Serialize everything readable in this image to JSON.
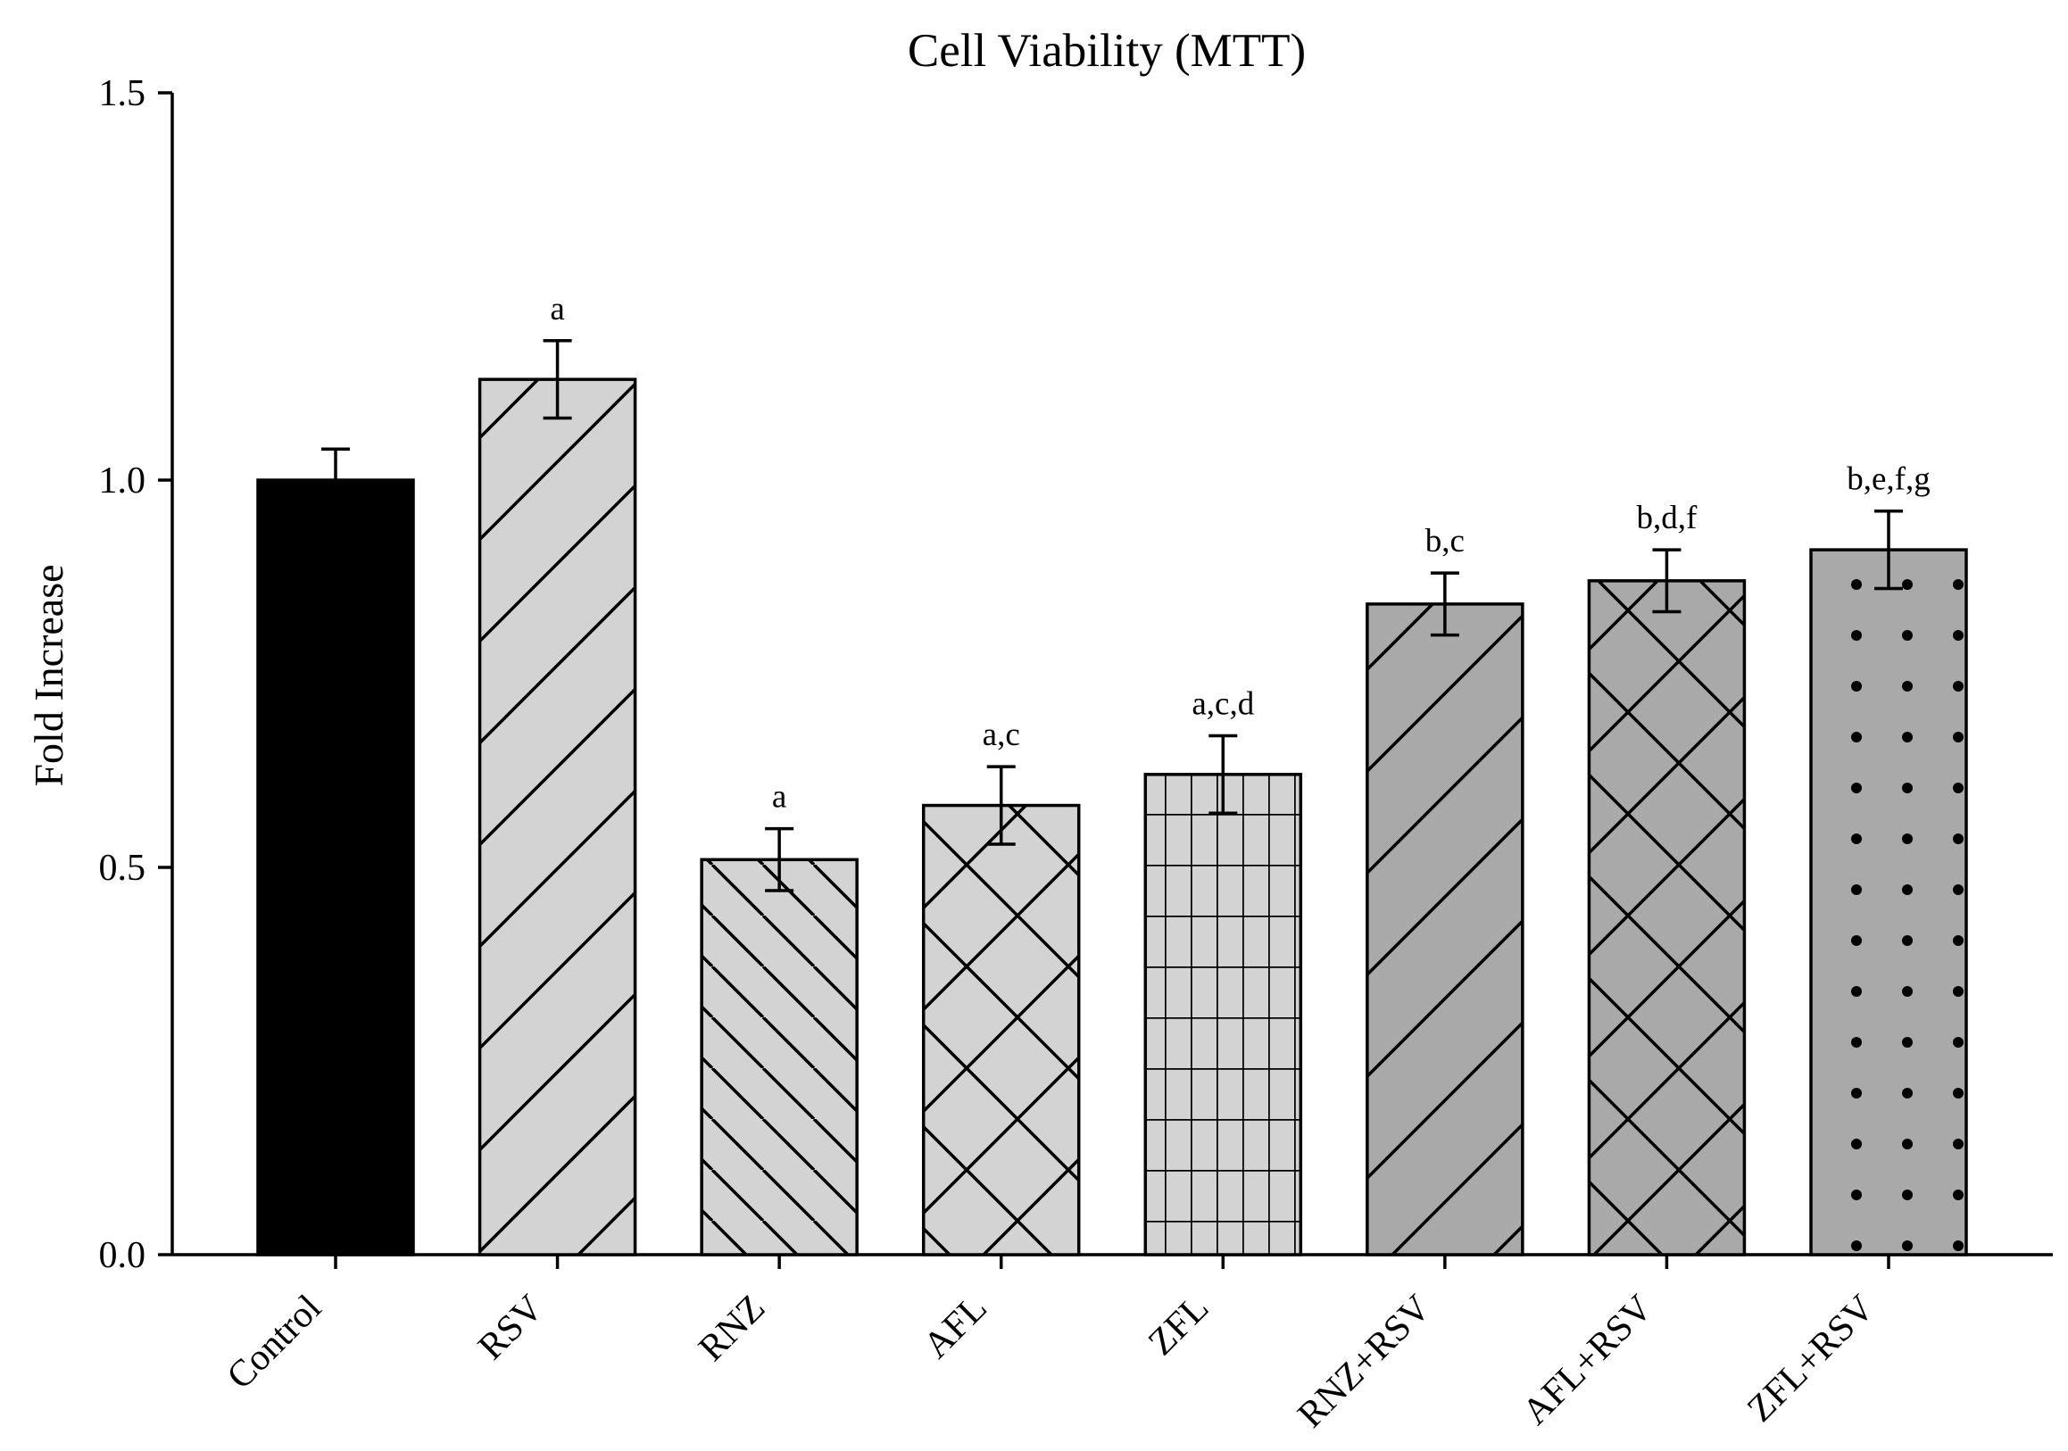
{
  "chart_data": {
    "type": "bar",
    "title": "Cell Viability (MTT)",
    "xlabel": "",
    "ylabel": "Fold Increase",
    "ylim": [
      0,
      1.5
    ],
    "yticks": [
      "0.0",
      "0.5",
      "1.0",
      "1.5"
    ],
    "ytick_values": [
      0,
      0.5,
      1.0,
      1.5
    ],
    "grid": false,
    "legend": "none",
    "categories": [
      "Control",
      "RSV",
      "RNZ",
      "AFL",
      "ZFL",
      "RNZ+RSV",
      "AFL+RSV",
      "ZFL+RSV"
    ],
    "values": [
      1.0,
      1.13,
      0.51,
      0.58,
      0.62,
      0.84,
      0.87,
      0.91
    ],
    "errors": [
      0.04,
      0.05,
      0.04,
      0.05,
      0.05,
      0.04,
      0.04,
      0.05
    ],
    "error_style": [
      "upper",
      "both",
      "both",
      "both",
      "both",
      "both",
      "both",
      "both"
    ],
    "significance_labels": [
      "",
      "a",
      "a",
      "a,c",
      "a,c,d",
      "b,c",
      "b,d,f",
      "b,e,f,g"
    ],
    "bar_fills": [
      "#000000",
      "#d3d3d3",
      "#d3d3d3",
      "#d3d3d3",
      "#d3d3d3",
      "#a9a9a9",
      "#a9a9a9",
      "#a9a9a9"
    ],
    "bar_patterns": [
      "solid",
      "diag-up",
      "diag-down",
      "crosshatch",
      "grid",
      "diag-up",
      "crosshatch",
      "dots"
    ]
  }
}
